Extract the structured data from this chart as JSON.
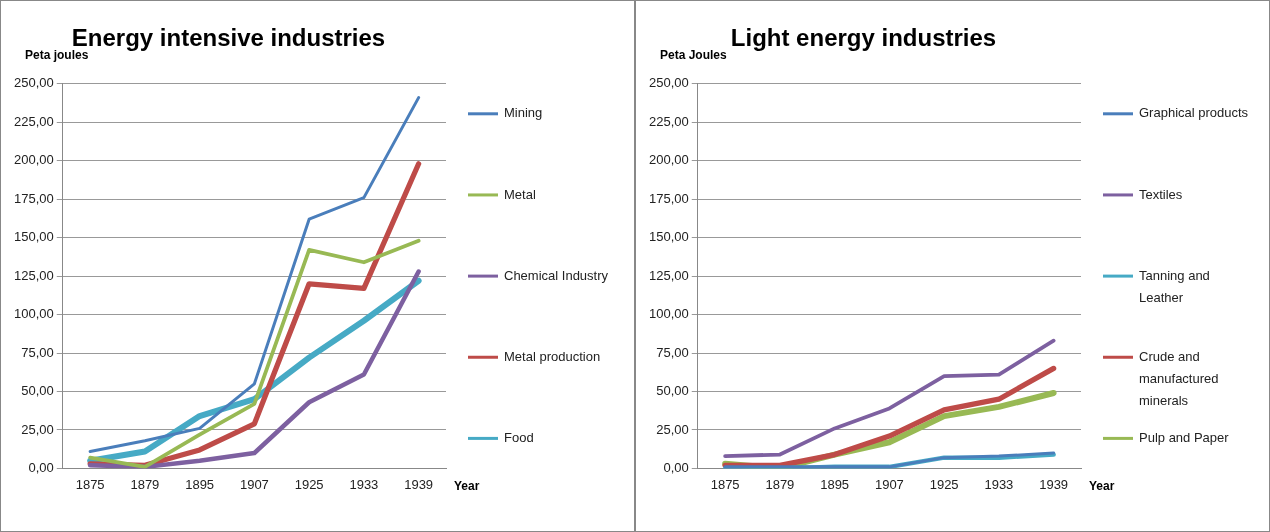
{
  "chart_data": [
    {
      "type": "line",
      "title": "Energy intensive industries",
      "ylabel": "Peta joules",
      "xlabel": "Year",
      "categories": [
        "1875",
        "1879",
        "1895",
        "1907",
        "1925",
        "1933",
        "1939"
      ],
      "series": [
        {
          "name": "Mining",
          "color": "#4a7ebb",
          "values": [
            11,
            18,
            26,
            55,
            162,
            176,
            241
          ]
        },
        {
          "name": "Metal",
          "color": "#98b954",
          "values": [
            7,
            1,
            22,
            42,
            142,
            134,
            148
          ]
        },
        {
          "name": "Chemical Industry",
          "color": "#7d60a0",
          "values": [
            2,
            1,
            5,
            10,
            43,
            61,
            128
          ]
        },
        {
          "name": "Metal production",
          "color": "#be4b48",
          "values": [
            3,
            2,
            12,
            29,
            120,
            117,
            198
          ]
        },
        {
          "name": "Food",
          "color": "#46aac5",
          "values": [
            5,
            11,
            34,
            45,
            72,
            96,
            122
          ]
        }
      ],
      "ylim": [
        0,
        250
      ],
      "yticks": [
        {
          "value": 0,
          "label": "0,00"
        },
        {
          "value": 25,
          "label": "25,00"
        },
        {
          "value": 50,
          "label": "50,00"
        },
        {
          "value": 75,
          "label": "75,00"
        },
        {
          "value": 100,
          "label": "100,00"
        },
        {
          "value": 125,
          "label": "125,00"
        },
        {
          "value": 150,
          "label": "150,00"
        },
        {
          "value": 175,
          "label": "175,00"
        },
        {
          "value": 200,
          "label": "200,00"
        },
        {
          "value": 225,
          "label": "225,00"
        },
        {
          "value": 250,
          "label": "250,00"
        }
      ],
      "grid": "y",
      "legend": "right",
      "marker": "none",
      "line_style": "solid"
    },
    {
      "type": "line",
      "title": "Light energy industries",
      "ylabel": "Peta Joules",
      "xlabel": "Year",
      "categories": [
        "1875",
        "1879",
        "1895",
        "1907",
        "1925",
        "1933",
        "1939"
      ],
      "series": [
        {
          "name": "Graphical products",
          "color": "#4a7ebb",
          "values": [
            1,
            1,
            1,
            1,
            7,
            8,
            10
          ]
        },
        {
          "name": "Textiles",
          "color": "#7d60a0",
          "values": [
            8,
            9,
            26,
            39,
            60,
            61,
            83
          ]
        },
        {
          "name": "Tanning and Leather",
          "color": "#46aac5",
          "values": [
            0,
            0,
            1,
            1,
            7,
            7,
            9
          ]
        },
        {
          "name": "Crude and manufactured minerals",
          "color": "#be4b48",
          "values": [
            2,
            2,
            9,
            21,
            38,
            45,
            65
          ]
        },
        {
          "name": "Pulp and Paper",
          "color": "#98b954",
          "values": [
            3,
            0,
            9,
            17,
            34,
            40,
            49
          ]
        }
      ],
      "ylim": [
        0,
        250
      ],
      "yticks": [
        {
          "value": 0,
          "label": "0,00"
        },
        {
          "value": 25,
          "label": "25,00"
        },
        {
          "value": 50,
          "label": "50,00"
        },
        {
          "value": 75,
          "label": "75,00"
        },
        {
          "value": 100,
          "label": "100,00"
        },
        {
          "value": 125,
          "label": "125,00"
        },
        {
          "value": 150,
          "label": "150,00"
        },
        {
          "value": 175,
          "label": "175,00"
        },
        {
          "value": 200,
          "label": "200,00"
        },
        {
          "value": 225,
          "label": "225,00"
        },
        {
          "value": 250,
          "label": "250,00"
        }
      ],
      "grid": "y",
      "legend": "right",
      "marker": "none",
      "line_style": "solid"
    }
  ]
}
